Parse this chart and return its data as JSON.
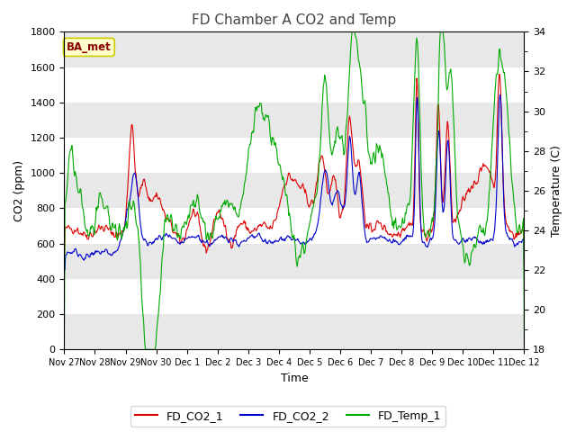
{
  "title": "FD Chamber A CO2 and Temp",
  "xlabel": "Time",
  "ylabel_left": "CO2 (ppm)",
  "ylabel_right": "Temperature (C)",
  "ylim_left": [
    0,
    1800
  ],
  "ylim_right": [
    18,
    34
  ],
  "yticks_left": [
    0,
    200,
    400,
    600,
    800,
    1000,
    1200,
    1400,
    1600,
    1800
  ],
  "yticks_right": [
    18,
    20,
    22,
    24,
    26,
    28,
    30,
    32,
    34
  ],
  "xtick_labels": [
    "Nov 27",
    "Nov 28",
    "Nov 29",
    "Nov 30",
    "Dec 1",
    "Dec 2",
    "Dec 3",
    "Dec 4",
    "Dec 5",
    "Dec 6",
    "Dec 7",
    "Dec 8",
    "Dec 9",
    "Dec 10",
    "Dec 11",
    "Dec 12"
  ],
  "color_co2_1": "#dd0000",
  "color_co2_2": "#0000cc",
  "color_temp": "#00aa00",
  "legend_labels": [
    "FD_CO2_1",
    "FD_CO2_2",
    "FD_Temp_1"
  ],
  "annotation_text": "BA_met",
  "annotation_color": "#8b0000",
  "annotation_bg": "#ffffcc",
  "annotation_edge": "#cccc00",
  "fig_bg": "#ffffff",
  "plot_bg": "#ffffff",
  "band_color": "#e8e8e8",
  "title_fontsize": 11,
  "axis_fontsize": 9,
  "tick_fontsize": 8,
  "legend_fontsize": 9
}
